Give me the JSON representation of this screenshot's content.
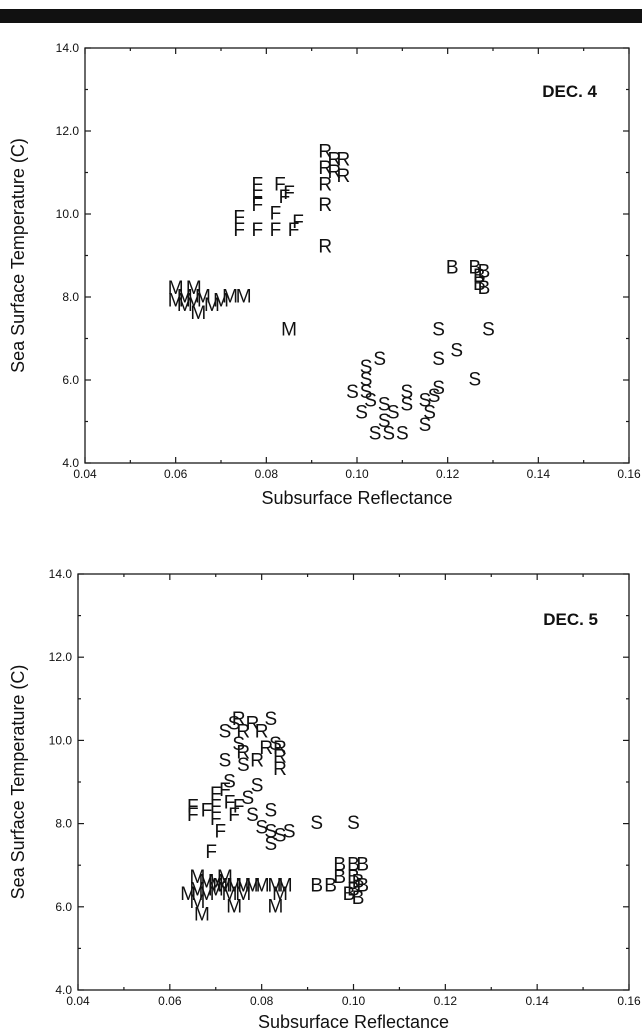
{
  "chart_data": [
    {
      "type": "scatter",
      "title": "",
      "annotation": "DEC. 4",
      "xlabel": "Subsurface Reflectance",
      "ylabel": "Sea Surface Temperature (C)",
      "xlim": [
        0.04,
        0.16
      ],
      "ylim": [
        4.0,
        14.0
      ],
      "x_ticks": [
        "0.04",
        "0.06",
        "0.08",
        "0.10",
        "0.12",
        "0.14",
        "0.16"
      ],
      "y_ticks": [
        "4.0",
        "6.0",
        "8.0",
        "10.0",
        "12.0",
        "14.0"
      ],
      "grid": false,
      "legend": "none",
      "points": [
        {
          "label": "M",
          "x": 0.06,
          "y": 8.2
        },
        {
          "label": "M",
          "x": 0.06,
          "y": 7.9
        },
        {
          "label": "M",
          "x": 0.062,
          "y": 8.0
        },
        {
          "label": "M",
          "x": 0.062,
          "y": 7.8
        },
        {
          "label": "M",
          "x": 0.064,
          "y": 8.2
        },
        {
          "label": "M",
          "x": 0.064,
          "y": 7.9
        },
        {
          "label": "M",
          "x": 0.065,
          "y": 7.6
        },
        {
          "label": "M",
          "x": 0.066,
          "y": 8.0
        },
        {
          "label": "M",
          "x": 0.068,
          "y": 7.8
        },
        {
          "label": "M",
          "x": 0.07,
          "y": 7.9
        },
        {
          "label": "M",
          "x": 0.072,
          "y": 8.0
        },
        {
          "label": "M",
          "x": 0.075,
          "y": 8.0
        },
        {
          "label": "M",
          "x": 0.085,
          "y": 7.2
        },
        {
          "label": "F",
          "x": 0.074,
          "y": 9.9
        },
        {
          "label": "F",
          "x": 0.074,
          "y": 9.6
        },
        {
          "label": "F",
          "x": 0.078,
          "y": 10.7
        },
        {
          "label": "F",
          "x": 0.078,
          "y": 10.4
        },
        {
          "label": "F",
          "x": 0.078,
          "y": 10.2
        },
        {
          "label": "F",
          "x": 0.078,
          "y": 9.6
        },
        {
          "label": "F",
          "x": 0.082,
          "y": 10.0
        },
        {
          "label": "F",
          "x": 0.082,
          "y": 9.6
        },
        {
          "label": "F",
          "x": 0.083,
          "y": 10.7
        },
        {
          "label": "F",
          "x": 0.084,
          "y": 10.4
        },
        {
          "label": "F",
          "x": 0.085,
          "y": 10.5
        },
        {
          "label": "F",
          "x": 0.086,
          "y": 9.6
        },
        {
          "label": "F",
          "x": 0.087,
          "y": 9.8
        },
        {
          "label": "R",
          "x": 0.093,
          "y": 11.5
        },
        {
          "label": "R",
          "x": 0.093,
          "y": 11.1
        },
        {
          "label": "R",
          "x": 0.093,
          "y": 10.7
        },
        {
          "label": "R",
          "x": 0.093,
          "y": 10.2
        },
        {
          "label": "R",
          "x": 0.093,
          "y": 9.2
        },
        {
          "label": "R",
          "x": 0.095,
          "y": 11.3
        },
        {
          "label": "R",
          "x": 0.095,
          "y": 11.0
        },
        {
          "label": "R",
          "x": 0.097,
          "y": 11.3
        },
        {
          "label": "R",
          "x": 0.097,
          "y": 10.9
        },
        {
          "label": "S",
          "x": 0.102,
          "y": 6.3
        },
        {
          "label": "S",
          "x": 0.102,
          "y": 6.0
        },
        {
          "label": "S",
          "x": 0.102,
          "y": 5.7
        },
        {
          "label": "S",
          "x": 0.101,
          "y": 5.2
        },
        {
          "label": "S",
          "x": 0.099,
          "y": 5.7
        },
        {
          "label": "S",
          "x": 0.103,
          "y": 5.5
        },
        {
          "label": "S",
          "x": 0.104,
          "y": 4.7
        },
        {
          "label": "S",
          "x": 0.105,
          "y": 6.5
        },
        {
          "label": "S",
          "x": 0.106,
          "y": 5.4
        },
        {
          "label": "S",
          "x": 0.106,
          "y": 5.0
        },
        {
          "label": "S",
          "x": 0.107,
          "y": 4.7
        },
        {
          "label": "S",
          "x": 0.108,
          "y": 5.2
        },
        {
          "label": "S",
          "x": 0.11,
          "y": 4.7
        },
        {
          "label": "S",
          "x": 0.111,
          "y": 5.7
        },
        {
          "label": "S",
          "x": 0.111,
          "y": 5.4
        },
        {
          "label": "S",
          "x": 0.115,
          "y": 5.5
        },
        {
          "label": "S",
          "x": 0.115,
          "y": 4.9
        },
        {
          "label": "S",
          "x": 0.116,
          "y": 5.2
        },
        {
          "label": "S",
          "x": 0.117,
          "y": 5.6
        },
        {
          "label": "S",
          "x": 0.118,
          "y": 5.8
        },
        {
          "label": "S",
          "x": 0.118,
          "y": 6.5
        },
        {
          "label": "S",
          "x": 0.118,
          "y": 7.2
        },
        {
          "label": "S",
          "x": 0.122,
          "y": 6.7
        },
        {
          "label": "S",
          "x": 0.126,
          "y": 6.0
        },
        {
          "label": "S",
          "x": 0.129,
          "y": 7.2
        },
        {
          "label": "B",
          "x": 0.121,
          "y": 8.7
        },
        {
          "label": "B",
          "x": 0.126,
          "y": 8.7
        },
        {
          "label": "B",
          "x": 0.127,
          "y": 8.5
        },
        {
          "label": "B",
          "x": 0.127,
          "y": 8.3
        },
        {
          "label": "B",
          "x": 0.128,
          "y": 8.6
        },
        {
          "label": "B",
          "x": 0.128,
          "y": 8.2
        }
      ]
    },
    {
      "type": "scatter",
      "title": "",
      "annotation": "DEC. 5",
      "xlabel": "Subsurface Reflectance",
      "ylabel": "Sea Surface Temperature (C)",
      "xlim": [
        0.04,
        0.16
      ],
      "ylim": [
        4.0,
        14.0
      ],
      "x_ticks": [
        "0.04",
        "0.06",
        "0.08",
        "0.10",
        "0.12",
        "0.14",
        "0.16"
      ],
      "y_ticks": [
        "4.0",
        "6.0",
        "8.0",
        "10.0",
        "12.0",
        "14.0"
      ],
      "grid": false,
      "legend": "none",
      "points": [
        {
          "label": "F",
          "x": 0.065,
          "y": 8.4
        },
        {
          "label": "F",
          "x": 0.065,
          "y": 8.2
        },
        {
          "label": "F",
          "x": 0.068,
          "y": 8.3
        },
        {
          "label": "F",
          "x": 0.069,
          "y": 7.3
        },
        {
          "label": "F",
          "x": 0.07,
          "y": 8.7
        },
        {
          "label": "F",
          "x": 0.07,
          "y": 8.4
        },
        {
          "label": "F",
          "x": 0.07,
          "y": 8.1
        },
        {
          "label": "F",
          "x": 0.071,
          "y": 7.8
        },
        {
          "label": "F",
          "x": 0.072,
          "y": 8.8
        },
        {
          "label": "F",
          "x": 0.073,
          "y": 8.5
        },
        {
          "label": "F",
          "x": 0.074,
          "y": 8.2
        },
        {
          "label": "F",
          "x": 0.075,
          "y": 8.4
        },
        {
          "label": "S",
          "x": 0.072,
          "y": 10.2
        },
        {
          "label": "S",
          "x": 0.072,
          "y": 9.5
        },
        {
          "label": "S",
          "x": 0.073,
          "y": 9.0
        },
        {
          "label": "S",
          "x": 0.074,
          "y": 10.4
        },
        {
          "label": "S",
          "x": 0.075,
          "y": 9.9
        },
        {
          "label": "S",
          "x": 0.076,
          "y": 9.4
        },
        {
          "label": "S",
          "x": 0.077,
          "y": 8.6
        },
        {
          "label": "S",
          "x": 0.078,
          "y": 8.2
        },
        {
          "label": "S",
          "x": 0.079,
          "y": 8.9
        },
        {
          "label": "S",
          "x": 0.08,
          "y": 7.9
        },
        {
          "label": "S",
          "x": 0.082,
          "y": 10.5
        },
        {
          "label": "S",
          "x": 0.082,
          "y": 8.3
        },
        {
          "label": "S",
          "x": 0.082,
          "y": 7.8
        },
        {
          "label": "S",
          "x": 0.082,
          "y": 7.5
        },
        {
          "label": "S",
          "x": 0.083,
          "y": 9.9
        },
        {
          "label": "S",
          "x": 0.084,
          "y": 7.7
        },
        {
          "label": "S",
          "x": 0.086,
          "y": 7.8
        },
        {
          "label": "S",
          "x": 0.092,
          "y": 8.0
        },
        {
          "label": "S",
          "x": 0.1,
          "y": 8.0
        },
        {
          "label": "R",
          "x": 0.075,
          "y": 10.5
        },
        {
          "label": "R",
          "x": 0.076,
          "y": 10.2
        },
        {
          "label": "R",
          "x": 0.076,
          "y": 9.7
        },
        {
          "label": "R",
          "x": 0.078,
          "y": 10.4
        },
        {
          "label": "R",
          "x": 0.079,
          "y": 9.5
        },
        {
          "label": "R",
          "x": 0.08,
          "y": 10.2
        },
        {
          "label": "R",
          "x": 0.081,
          "y": 9.8
        },
        {
          "label": "R",
          "x": 0.084,
          "y": 9.8
        },
        {
          "label": "R",
          "x": 0.084,
          "y": 9.6
        },
        {
          "label": "R",
          "x": 0.084,
          "y": 9.3
        },
        {
          "label": "M",
          "x": 0.064,
          "y": 6.3
        },
        {
          "label": "M",
          "x": 0.066,
          "y": 6.7
        },
        {
          "label": "M",
          "x": 0.066,
          "y": 6.4
        },
        {
          "label": "M",
          "x": 0.066,
          "y": 6.1
        },
        {
          "label": "M",
          "x": 0.067,
          "y": 5.8
        },
        {
          "label": "M",
          "x": 0.068,
          "y": 6.6
        },
        {
          "label": "M",
          "x": 0.068,
          "y": 6.3
        },
        {
          "label": "M",
          "x": 0.07,
          "y": 6.6
        },
        {
          "label": "M",
          "x": 0.07,
          "y": 6.4
        },
        {
          "label": "M",
          "x": 0.071,
          "y": 6.5
        },
        {
          "label": "M",
          "x": 0.072,
          "y": 6.7
        },
        {
          "label": "M",
          "x": 0.072,
          "y": 6.5
        },
        {
          "label": "M",
          "x": 0.073,
          "y": 6.3
        },
        {
          "label": "M",
          "x": 0.074,
          "y": 6.0
        },
        {
          "label": "M",
          "x": 0.074,
          "y": 6.5
        },
        {
          "label": "M",
          "x": 0.076,
          "y": 6.5
        },
        {
          "label": "M",
          "x": 0.076,
          "y": 6.3
        },
        {
          "label": "M",
          "x": 0.078,
          "y": 6.5
        },
        {
          "label": "M",
          "x": 0.08,
          "y": 6.5
        },
        {
          "label": "M",
          "x": 0.083,
          "y": 6.5
        },
        {
          "label": "M",
          "x": 0.083,
          "y": 6.0
        },
        {
          "label": "M",
          "x": 0.084,
          "y": 6.3
        },
        {
          "label": "M",
          "x": 0.085,
          "y": 6.5
        },
        {
          "label": "B",
          "x": 0.092,
          "y": 6.5
        },
        {
          "label": "B",
          "x": 0.095,
          "y": 6.5
        },
        {
          "label": "B",
          "x": 0.097,
          "y": 7.0
        },
        {
          "label": "B",
          "x": 0.097,
          "y": 6.7
        },
        {
          "label": "B",
          "x": 0.099,
          "y": 6.3
        },
        {
          "label": "B",
          "x": 0.1,
          "y": 7.0
        },
        {
          "label": "B",
          "x": 0.1,
          "y": 6.7
        },
        {
          "label": "B",
          "x": 0.1,
          "y": 6.4
        },
        {
          "label": "B",
          "x": 0.101,
          "y": 6.6
        },
        {
          "label": "B",
          "x": 0.101,
          "y": 6.2
        },
        {
          "label": "B",
          "x": 0.102,
          "y": 7.0
        },
        {
          "label": "B",
          "x": 0.102,
          "y": 6.5
        }
      ]
    }
  ]
}
